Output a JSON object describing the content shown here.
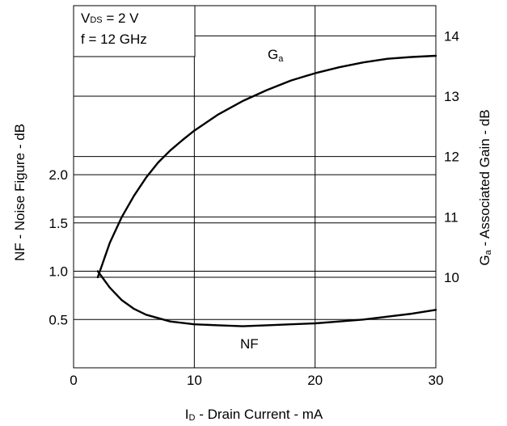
{
  "chart_data": {
    "type": "line",
    "title": "",
    "conditions": {
      "vds_label": "V",
      "vds_sub": "DS",
      "vds_value": " = 2 V",
      "freq": "f = 12 GHz"
    },
    "xlabel": {
      "main": "I",
      "sub": "D",
      "rest": " - Drain Current - mA"
    },
    "ylabel_left": "NF - Noise Figure - dB",
    "ylabel_right": {
      "main": "G",
      "sub": "a",
      "rest": " - Associated Gain - dB"
    },
    "xlim": [
      0,
      30
    ],
    "x_ticks": [
      "0",
      "10",
      "20",
      "30"
    ],
    "x_tick_values": [
      0,
      10,
      20,
      30
    ],
    "left_ylim": [
      0,
      3.75
    ],
    "left_ticks": [
      "0.5",
      "1.0",
      "1.5",
      "2.0"
    ],
    "left_tick_values": [
      0.5,
      1.0,
      1.5,
      2.0
    ],
    "right_ylim": [
      8.5,
      14.5
    ],
    "right_ticks": [
      "10",
      "11",
      "12",
      "13",
      "14"
    ],
    "right_tick_values": [
      10,
      11,
      12,
      13,
      14
    ],
    "grid": true,
    "series": [
      {
        "name": "NF",
        "axis": "left",
        "x": [
          2,
          3,
          4,
          5,
          6,
          8,
          10,
          12,
          14,
          16,
          18,
          20,
          22,
          24,
          26,
          28,
          30
        ],
        "y": [
          1.0,
          0.83,
          0.7,
          0.61,
          0.55,
          0.48,
          0.45,
          0.44,
          0.43,
          0.44,
          0.45,
          0.46,
          0.48,
          0.5,
          0.53,
          0.56,
          0.6
        ]
      },
      {
        "name": "G",
        "name_sub": "a",
        "axis": "right",
        "x": [
          2,
          3,
          4,
          5,
          6,
          7,
          8,
          9,
          10,
          12,
          14,
          16,
          18,
          20,
          22,
          24,
          26,
          28,
          30
        ],
        "y": [
          10.0,
          10.57,
          11.0,
          11.35,
          11.65,
          11.9,
          12.1,
          12.27,
          12.43,
          12.7,
          12.92,
          13.1,
          13.26,
          13.38,
          13.48,
          13.56,
          13.62,
          13.65,
          13.67
        ]
      }
    ]
  }
}
